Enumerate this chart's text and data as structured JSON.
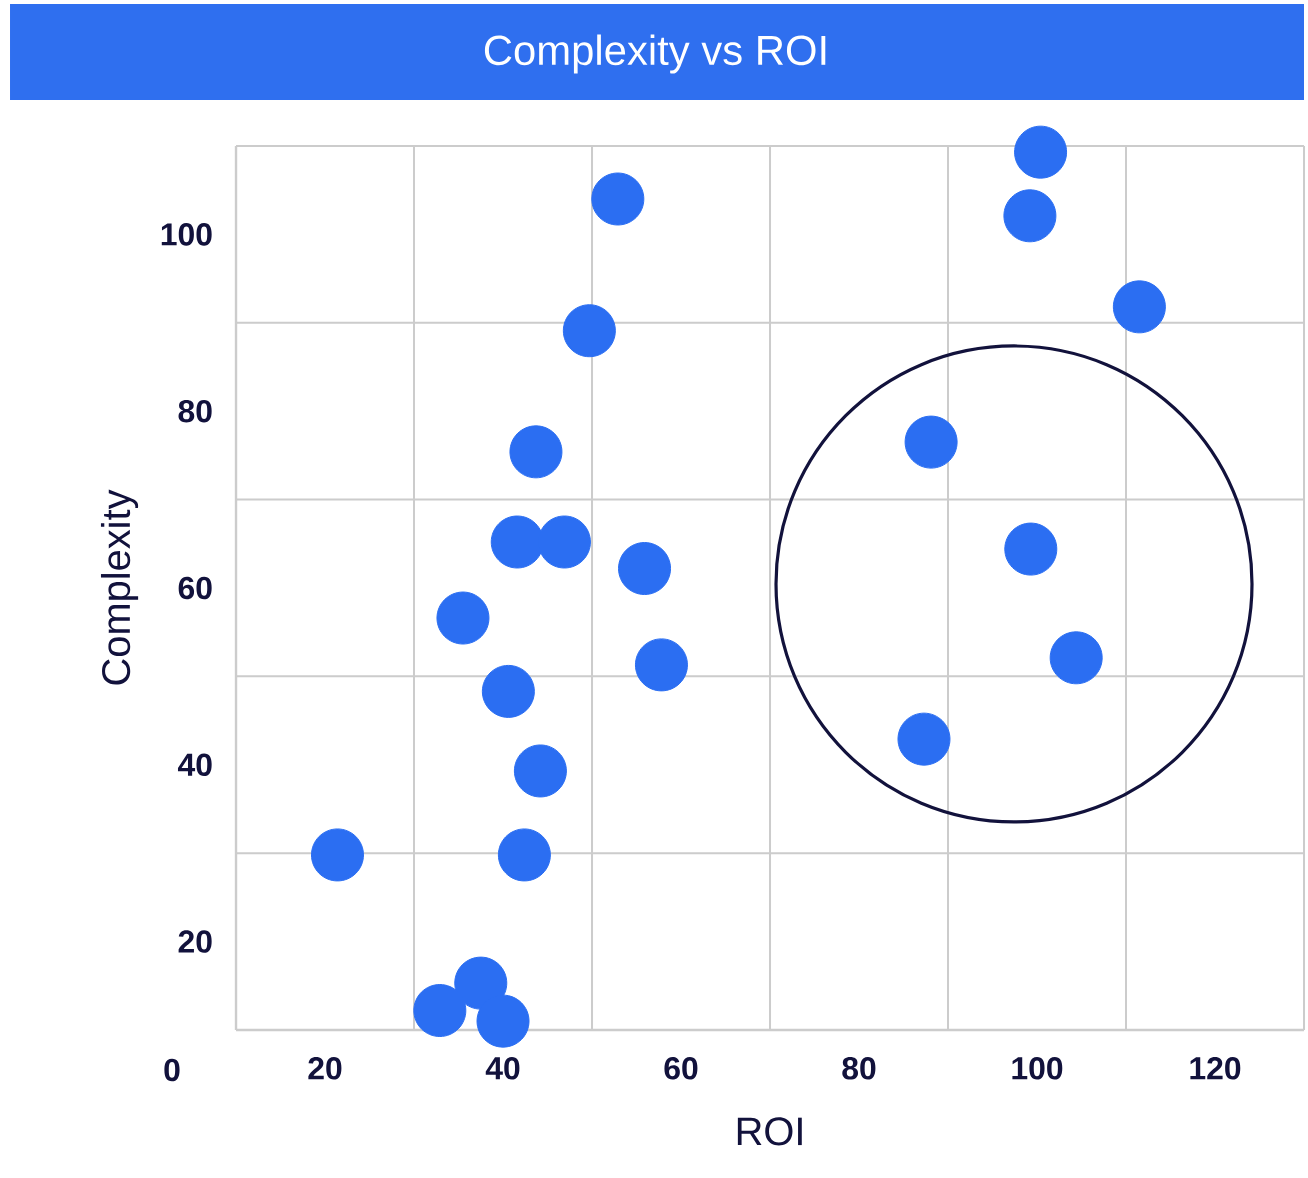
{
  "chart_data": {
    "type": "scatter",
    "title": "Complexity vs ROI",
    "xlabel": "ROI",
    "ylabel": "Complexity",
    "annotations": [
      "0"
    ],
    "x": [
      52.9,
      49.7,
      43.7,
      41.6,
      46.9,
      55.9,
      35.5,
      57.8,
      40.6,
      44.2,
      21.4,
      42.4,
      37.5,
      32.9,
      40.0,
      100.4,
      99.2,
      111.5,
      88.1,
      99.3,
      104.4,
      87.3
    ],
    "values": [
      104.0,
      89.1,
      75.4,
      65.2,
      65.2,
      62.2,
      56.6,
      51.3,
      48.3,
      39.3,
      29.8,
      29.8,
      15.3,
      12.2,
      11.0,
      109.3,
      102.1,
      91.8,
      76.5,
      64.4,
      52.1,
      42.9
    ],
    "color": "#2b6ef2",
    "marker": "circle",
    "grid": true,
    "xlim": [
      10,
      130
    ],
    "ylim": [
      10,
      110
    ],
    "xticks": [
      20,
      40,
      60,
      80,
      100,
      120
    ],
    "yticks": [
      20,
      40,
      60,
      80,
      100
    ]
  }
}
